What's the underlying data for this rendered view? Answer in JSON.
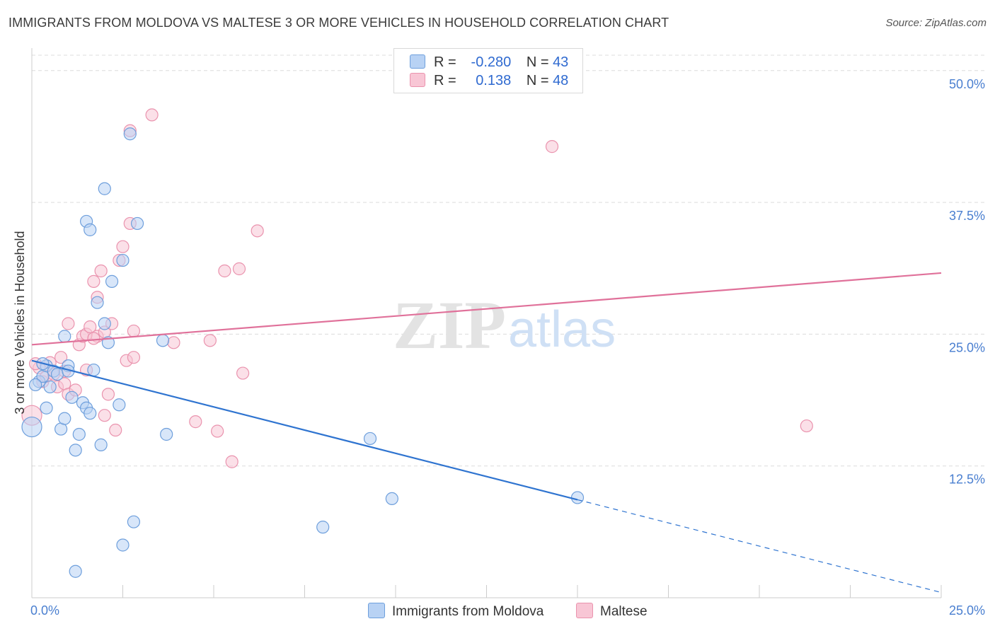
{
  "title": "IMMIGRANTS FROM MOLDOVA VS MALTESE 3 OR MORE VEHICLES IN HOUSEHOLD CORRELATION CHART",
  "source": "Source: ZipAtlas.com",
  "watermark": {
    "zip": "ZIP",
    "atlas": "atlas"
  },
  "legend": {
    "r_label": "R =",
    "n_label": "N =",
    "rows": [
      {
        "r": "-0.280",
        "n": "43",
        "color": "#a9c8f0"
      },
      {
        "r": "0.138",
        "n": "48",
        "color": "#f6b8cb"
      }
    ]
  },
  "colors": {
    "blue_fill": "#b8d2f4",
    "blue_stroke": "#6e9fdc",
    "blue_line": "#2f74d0",
    "pink_fill": "#f8c6d5",
    "pink_stroke": "#ea93ae",
    "pink_line": "#e0719a",
    "grid": "#dcdcdc",
    "tick_text": "#4a7fd0"
  },
  "chart_data": {
    "type": "scatter",
    "xlabel": "",
    "ylabel": "3 or more Vehicles in Household",
    "xlim": [
      0,
      25
    ],
    "ylim": [
      0,
      52
    ],
    "x_tick_labels": [
      "0.0%",
      "25.0%"
    ],
    "y_ticks": [
      12.5,
      25.0,
      37.5,
      50.0
    ],
    "y_tick_labels": [
      "12.5%",
      "25.0%",
      "37.5%",
      "50.0%"
    ],
    "series": [
      {
        "name": "Immigrants from Moldova",
        "color": "#b8d2f4",
        "r": -0.28,
        "n": 43,
        "trend": {
          "x0": 0.0,
          "y0": 22.5,
          "x1": 15.0,
          "y1": 9.3,
          "dash_x1": 25.0,
          "dash_y1": 0.5
        },
        "points": [
          [
            0.2,
            20.5
          ],
          [
            0.3,
            21.0
          ],
          [
            0.4,
            22.0
          ],
          [
            0.5,
            20.0
          ],
          [
            0.6,
            21.5
          ],
          [
            0.7,
            21.2
          ],
          [
            0.8,
            16.0
          ],
          [
            0.9,
            17.0
          ],
          [
            0.4,
            18.0
          ],
          [
            1.0,
            22.0
          ],
          [
            1.0,
            21.5
          ],
          [
            1.1,
            19.0
          ],
          [
            1.2,
            14.0
          ],
          [
            1.3,
            15.5
          ],
          [
            1.4,
            18.5
          ],
          [
            1.5,
            18.0
          ],
          [
            1.6,
            17.5
          ],
          [
            1.7,
            21.6
          ],
          [
            1.8,
            28.0
          ],
          [
            1.9,
            14.5
          ],
          [
            2.0,
            26.0
          ],
          [
            2.1,
            24.2
          ],
          [
            2.2,
            30.0
          ],
          [
            2.4,
            18.3
          ],
          [
            2.5,
            32.0
          ],
          [
            2.0,
            38.8
          ],
          [
            1.5,
            35.7
          ],
          [
            1.6,
            34.9
          ],
          [
            2.9,
            35.5
          ],
          [
            2.7,
            44.0
          ],
          [
            3.6,
            24.4
          ],
          [
            3.7,
            15.5
          ],
          [
            0.9,
            24.8
          ],
          [
            0.0,
            16.2
          ],
          [
            0.1,
            20.2
          ],
          [
            9.3,
            15.1
          ],
          [
            9.9,
            9.4
          ],
          [
            15.0,
            9.5
          ],
          [
            2.8,
            7.2
          ],
          [
            2.5,
            5.0
          ],
          [
            8.0,
            6.7
          ],
          [
            1.2,
            2.5
          ],
          [
            0.3,
            22.2
          ]
        ]
      },
      {
        "name": "Maltese",
        "color": "#f8c6d5",
        "r": 0.138,
        "n": 48,
        "trend": {
          "x0": 0.0,
          "y0": 24.0,
          "x1": 25.0,
          "y1": 30.8
        },
        "points": [
          [
            0.0,
            17.3
          ],
          [
            0.2,
            21.8
          ],
          [
            0.3,
            20.5
          ],
          [
            0.4,
            21.0
          ],
          [
            0.5,
            22.3
          ],
          [
            0.6,
            21.2
          ],
          [
            0.7,
            20.0
          ],
          [
            0.8,
            22.8
          ],
          [
            0.9,
            21.5
          ],
          [
            0.9,
            20.3
          ],
          [
            1.0,
            19.3
          ],
          [
            1.0,
            26.0
          ],
          [
            1.2,
            19.7
          ],
          [
            1.3,
            24.0
          ],
          [
            1.4,
            24.8
          ],
          [
            1.5,
            25.0
          ],
          [
            1.5,
            21.6
          ],
          [
            1.6,
            25.7
          ],
          [
            1.7,
            30.0
          ],
          [
            1.8,
            28.5
          ],
          [
            1.8,
            24.8
          ],
          [
            1.9,
            31.0
          ],
          [
            2.0,
            17.3
          ],
          [
            2.0,
            25.2
          ],
          [
            2.1,
            19.3
          ],
          [
            2.2,
            26.0
          ],
          [
            2.3,
            15.9
          ],
          [
            2.4,
            32.0
          ],
          [
            2.5,
            33.3
          ],
          [
            2.6,
            22.5
          ],
          [
            2.7,
            35.5
          ],
          [
            2.8,
            22.8
          ],
          [
            2.8,
            25.3
          ],
          [
            3.3,
            45.8
          ],
          [
            2.7,
            44.3
          ],
          [
            3.9,
            24.2
          ],
          [
            4.5,
            16.7
          ],
          [
            4.9,
            24.4
          ],
          [
            5.1,
            15.8
          ],
          [
            5.3,
            31.0
          ],
          [
            5.5,
            12.9
          ],
          [
            5.7,
            31.2
          ],
          [
            5.8,
            21.3
          ],
          [
            6.2,
            34.8
          ],
          [
            14.3,
            42.8
          ],
          [
            21.3,
            16.3
          ],
          [
            0.1,
            22.2
          ],
          [
            1.7,
            24.6
          ]
        ]
      }
    ]
  },
  "bottom_legend": [
    {
      "label": "Immigrants from Moldova",
      "color": "#b8d2f4"
    },
    {
      "label": "Maltese",
      "color": "#f8c6d5"
    }
  ]
}
